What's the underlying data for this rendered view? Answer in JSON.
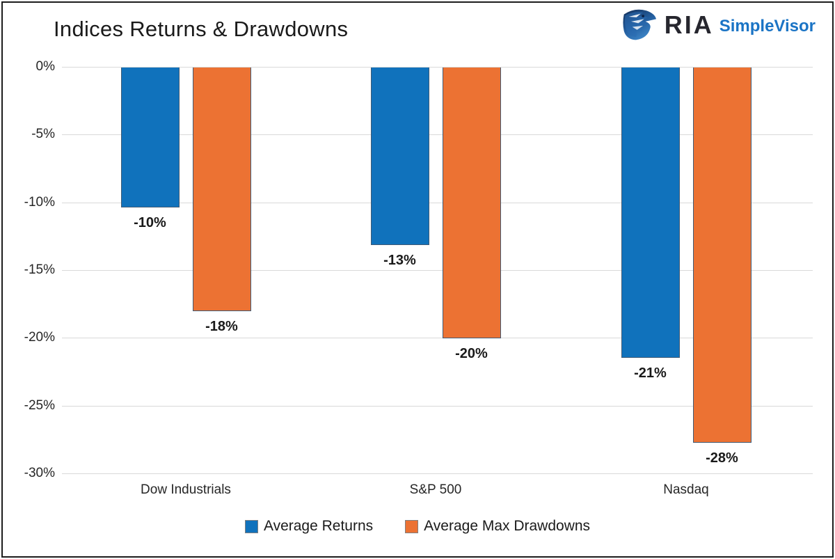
{
  "header": {
    "logo": {
      "brand": "RIA",
      "product": "SimpleVisor",
      "brand_color": "#26262e",
      "product_color": "#1b74c5",
      "icon": "eagle-head-icon",
      "icon_colors": {
        "dark": "#16335e",
        "mid": "#2a6cb3",
        "light": "#4d93d4"
      }
    }
  },
  "chart_data": {
    "type": "bar",
    "title": "Indices Returns & Drawdowns",
    "categories": [
      "Dow Industrials",
      "S&P 500",
      "Nasdaq"
    ],
    "series": [
      {
        "name": "Average Returns",
        "color": "#1072bc",
        "values": [
          -10.3,
          -13.1,
          -21.4
        ],
        "labels": [
          "-10%",
          "-13%",
          "-21%"
        ]
      },
      {
        "name": "Average Max Drawdowns",
        "color": "#ec7233",
        "values": [
          -18.0,
          -20.0,
          -27.7
        ],
        "labels": [
          "-18%",
          "-20%",
          "-28%"
        ]
      }
    ],
    "ylim": [
      -30,
      0
    ],
    "ytick_step": 5,
    "yticks": [
      "0%",
      "-5%",
      "-10%",
      "-15%",
      "-20%",
      "-25%",
      "-30%"
    ],
    "xlabel": "",
    "ylabel": "",
    "grid": true,
    "legend_position": "bottom",
    "colors": {
      "grid": "#d9d9d9",
      "text": "#262626",
      "data_label": "#1a1a1a",
      "bar_border": "#3f5a75"
    }
  }
}
